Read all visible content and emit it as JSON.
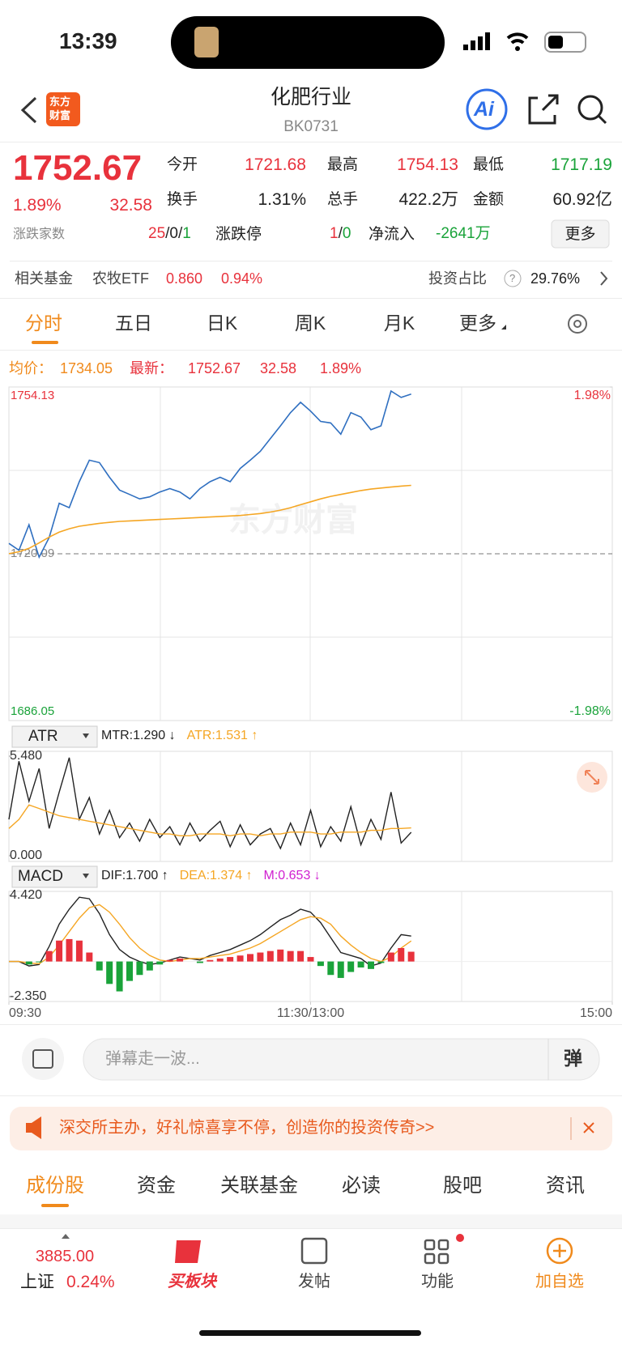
{
  "status": {
    "time": "13:39"
  },
  "header": {
    "logo_top": "东方",
    "logo_bottom": "财富",
    "title": "化肥行业",
    "code": "BK0731",
    "ai": "Ai"
  },
  "quote": {
    "price": "1752.67",
    "change_pct": "1.89%",
    "change": "32.58",
    "fields": [
      {
        "label": "今开",
        "value": "1721.68"
      },
      {
        "label": "最高",
        "value": "1754.13"
      },
      {
        "label": "最低",
        "value": "1717.19"
      },
      {
        "label": "换手",
        "value": "1.31%"
      },
      {
        "label": "总手",
        "value": "422.2万"
      },
      {
        "label": "金额",
        "value": "60.92亿"
      }
    ],
    "breadth": {
      "label": "涨跌家数",
      "up": "25",
      "flat": "0",
      "down": "1",
      "sep": "/"
    },
    "limit": {
      "label": "涨跌停",
      "up": "1",
      "down": "0"
    },
    "inflow": {
      "label": "净流入",
      "value": "-2641万"
    },
    "more": "更多"
  },
  "fund": {
    "label": "相关基金",
    "name": "农牧ETF",
    "price": "0.860",
    "pct": "0.94%",
    "ratio_label": "投资占比",
    "help": "?",
    "ratio": "29.76%"
  },
  "tabs": [
    "分时",
    "五日",
    "日K",
    "周K",
    "月K",
    "更多"
  ],
  "quote_bar": {
    "avg": "1734.05",
    "latest": "1752.67",
    "change": "32.58",
    "pct": "1.89%"
  },
  "chart_data": [
    {
      "type": "line",
      "watermark": "东方财富",
      "xlim": [
        0,
        240
      ],
      "xticks": [
        {
          "value": 0,
          "label": "09:30"
        },
        {
          "value": 120,
          "label": "11:30/13:00"
        },
        {
          "value": 240,
          "label": "15:00"
        }
      ],
      "ylim": [
        1686.05,
        1754.13
      ],
      "yticks": [
        1754.13,
        1720.09,
        1686.05
      ],
      "y2lim": [
        -1.98,
        1.98
      ],
      "y2ticks": [
        {
          "value": 1.98,
          "label": "1.98%"
        },
        {
          "value": -1.98,
          "label": "-1.98%"
        }
      ],
      "x": [
        0,
        4,
        8,
        12,
        16,
        20,
        24,
        28,
        32,
        36,
        40,
        44,
        48,
        52,
        56,
        60,
        64,
        68,
        72,
        76,
        80,
        84,
        88,
        92,
        96,
        100,
        104,
        108,
        112,
        116,
        120,
        124,
        128,
        132,
        136,
        140,
        144,
        148,
        152,
        156,
        160
      ],
      "series": [
        {
          "name": "最新：",
          "color": "#2f6fc0",
          "values": [
            1722.2,
            1720.8,
            1726.0,
            1719.4,
            1723.4,
            1730.4,
            1729.5,
            1734.8,
            1739.2,
            1738.7,
            1735.7,
            1733.1,
            1732.2,
            1731.3,
            1731.7,
            1732.7,
            1733.4,
            1732.7,
            1731.3,
            1733.4,
            1734.8,
            1735.7,
            1734.8,
            1737.5,
            1739.2,
            1741.0,
            1743.6,
            1746.2,
            1748.9,
            1751.0,
            1749.2,
            1747.1,
            1746.8,
            1744.5,
            1748.9,
            1748.0,
            1745.4,
            1746.2,
            1753.3,
            1752.0,
            1752.67
          ]
        },
        {
          "name": "均价：",
          "color": "#f5a623",
          "values": [
            1720.1,
            1720.5,
            1721.2,
            1722.3,
            1723.5,
            1724.5,
            1725.2,
            1725.7,
            1726.0,
            1726.3,
            1726.5,
            1726.7,
            1726.8,
            1726.9,
            1727.0,
            1727.1,
            1727.2,
            1727.3,
            1727.4,
            1727.5,
            1727.6,
            1727.7,
            1727.8,
            1727.9,
            1728.1,
            1728.3,
            1728.6,
            1729.0,
            1729.5,
            1730.1,
            1730.7,
            1731.3,
            1731.8,
            1732.2,
            1732.6,
            1733.0,
            1733.3,
            1733.5,
            1733.7,
            1733.9,
            1734.05
          ]
        }
      ]
    },
    {
      "type": "line",
      "selector": "ATR",
      "xlim": [
        0,
        240
      ],
      "ylim": [
        0,
        5.48
      ],
      "yticks": [
        {
          "value": 5.48,
          "label": "5.480"
        },
        {
          "value": 0,
          "label": "0.000"
        }
      ],
      "x": [
        0,
        4,
        8,
        12,
        16,
        20,
        24,
        28,
        32,
        36,
        40,
        44,
        48,
        52,
        56,
        60,
        64,
        68,
        72,
        76,
        80,
        84,
        88,
        92,
        96,
        100,
        104,
        108,
        112,
        116,
        120,
        124,
        128,
        132,
        136,
        140,
        144,
        148,
        152,
        156,
        160
      ],
      "series": [
        {
          "name": "MTR:1.290 ↓",
          "color": "#222222",
          "kind": "line",
          "values": [
            2.0,
            5.2,
            3.0,
            4.8,
            1.5,
            3.5,
            5.4,
            2.0,
            3.2,
            1.2,
            2.5,
            1.0,
            1.8,
            0.8,
            2.0,
            1.0,
            1.6,
            0.6,
            1.8,
            0.8,
            1.4,
            1.9,
            0.5,
            1.7,
            0.6,
            1.2,
            1.5,
            0.4,
            1.8,
            0.6,
            2.5,
            0.5,
            1.6,
            0.8,
            2.7,
            0.6,
            2.0,
            0.9,
            3.5,
            0.7,
            1.29
          ]
        },
        {
          "name": "ATR:1.531 ↑",
          "color": "#f5a623",
          "kind": "line",
          "values": [
            1.5,
            2.0,
            2.8,
            2.6,
            2.4,
            2.2,
            2.1,
            2.0,
            1.9,
            1.8,
            1.7,
            1.6,
            1.5,
            1.4,
            1.3,
            1.2,
            1.2,
            1.1,
            1.1,
            1.2,
            1.2,
            1.2,
            1.1,
            1.2,
            1.2,
            1.1,
            1.2,
            1.2,
            1.3,
            1.3,
            1.3,
            1.2,
            1.2,
            1.3,
            1.3,
            1.3,
            1.4,
            1.4,
            1.5,
            1.5,
            1.531
          ]
        }
      ]
    },
    {
      "type": "macd",
      "selector": "MACD",
      "xlim": [
        0,
        240
      ],
      "ylim": [
        -2.35,
        4.42
      ],
      "yticks": [
        {
          "value": 4.42,
          "label": "4.420"
        },
        {
          "value": -2.35,
          "label": "-2.350"
        }
      ],
      "colors": {
        "up": "#e8323c",
        "down": "#1aa33a"
      },
      "x": [
        0,
        4,
        8,
        12,
        16,
        20,
        24,
        28,
        32,
        36,
        40,
        44,
        48,
        52,
        56,
        60,
        64,
        68,
        72,
        76,
        80,
        84,
        88,
        92,
        96,
        100,
        104,
        108,
        112,
        116,
        120,
        124,
        128,
        132,
        136,
        140,
        144,
        148,
        152,
        156,
        160
      ],
      "series": [
        {
          "name": "DIF:1.700 ↑",
          "color": "#222222",
          "kind": "line",
          "values": [
            0,
            0,
            -0.3,
            -0.2,
            1.0,
            2.5,
            3.5,
            4.3,
            4.2,
            3.2,
            1.8,
            0.8,
            0.3,
            0,
            -0.2,
            -0.1,
            0.1,
            0.3,
            0.2,
            0.1,
            0.4,
            0.6,
            0.8,
            1.1,
            1.4,
            1.8,
            2.3,
            2.8,
            3.1,
            3.5,
            3.3,
            2.6,
            1.6,
            0.6,
            0.4,
            0.2,
            -0.3,
            -0.1,
            0.9,
            1.8,
            1.7
          ]
        },
        {
          "name": "DEA:1.374 ↑",
          "color": "#f5a623",
          "kind": "line",
          "values": [
            0,
            0,
            -0.1,
            -0.15,
            0.3,
            1.1,
            2.0,
            2.9,
            3.6,
            3.8,
            3.3,
            2.5,
            1.6,
            0.9,
            0.4,
            0.1,
            0.0,
            0.1,
            0.2,
            0.2,
            0.3,
            0.4,
            0.5,
            0.7,
            0.9,
            1.2,
            1.6,
            2.0,
            2.4,
            2.8,
            3.0,
            2.9,
            2.5,
            1.7,
            1.1,
            0.6,
            0.2,
            0.0,
            0.3,
            0.9,
            1.374
          ]
        },
        {
          "name": "M:0.653 ↓",
          "color": "#d020d0",
          "kind": "bar",
          "values": [
            0,
            0,
            -0.2,
            -0.05,
            0.7,
            1.4,
            1.5,
            1.4,
            0.6,
            -0.6,
            -1.5,
            -2.0,
            -1.3,
            -0.9,
            -0.6,
            -0.2,
            0.1,
            0.2,
            0,
            -0.1,
            0.1,
            0.2,
            0.3,
            0.4,
            0.5,
            0.6,
            0.7,
            0.8,
            0.7,
            0.7,
            0.3,
            -0.3,
            -0.9,
            -1.1,
            -0.7,
            -0.4,
            -0.5,
            -0.1,
            0.6,
            0.9,
            0.653
          ]
        }
      ]
    }
  ],
  "comment": {
    "placeholder": "弹幕走一波...",
    "button": "弹"
  },
  "ad": {
    "text": "深交所主办，好礼惊喜享不停，创造你的投资传奇>>"
  },
  "bottom_tabs": [
    "成份股",
    "资金",
    "关联基金",
    "必读",
    "股吧",
    "资讯"
  ],
  "nav": {
    "index_value": "3885.00",
    "index_name": "上证",
    "index_pct": "0.24%",
    "items": [
      "买板块",
      "发帖",
      "功能",
      "加自选"
    ]
  }
}
